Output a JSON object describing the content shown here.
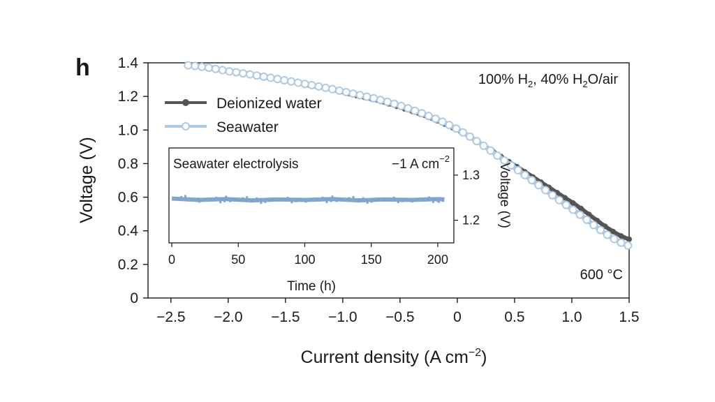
{
  "panel_label": "h",
  "chart_data": [
    {
      "type": "line",
      "xlabel": "Current density (A cm",
      "xlabel_sup": "−2",
      "xlabel_close": ")",
      "ylabel": "Voltage (V)",
      "xlim": [
        -2.7,
        1.5
      ],
      "ylim": [
        0,
        1.4
      ],
      "xticks": [
        -2.5,
        -2.0,
        -1.5,
        -1.0,
        -0.5,
        0,
        0.5,
        1.0,
        1.5
      ],
      "xtick_labels": [
        "−2.5",
        "−2.0",
        "−1.5",
        "−1.0",
        "−0.5",
        "0",
        "0.5",
        "1.0",
        "1.5"
      ],
      "yticks": [
        0,
        0.2,
        0.4,
        0.6,
        0.8,
        1.0,
        1.2,
        1.4
      ],
      "ytick_labels": [
        "0",
        "0.2",
        "0.4",
        "0.6",
        "0.8",
        "1.0",
        "1.2",
        "1.4"
      ],
      "legend_position": "upper-left",
      "annotation_conditions": {
        "parts": [
          "100% H",
          "2",
          ", 40% H",
          "2",
          "O/air"
        ]
      },
      "annotation_temperature": "600 °C",
      "series": [
        {
          "name": "Deionized water",
          "color": "#555555",
          "marker": "filled-circle",
          "x": [
            -2.35,
            -2.0,
            -1.5,
            -1.0,
            -0.5,
            0,
            0.5,
            1.0,
            1.5
          ],
          "y": [
            1.385,
            1.35,
            1.295,
            1.225,
            1.135,
            1.0,
            0.79,
            0.57,
            0.35
          ]
        },
        {
          "name": "Seawater",
          "color": "#aec9e3",
          "marker": "open-circle",
          "x": [
            -2.35,
            -2.0,
            -1.5,
            -1.0,
            -0.5,
            0,
            0.5,
            1.0,
            1.5
          ],
          "y": [
            1.385,
            1.35,
            1.295,
            1.23,
            1.145,
            1.005,
            0.775,
            0.53,
            0.31
          ]
        }
      ]
    },
    {
      "type": "line",
      "inset": true,
      "title": "Seawater electrolysis",
      "current_label": "−1 A cm",
      "current_sup": "−2",
      "xlabel": "Time (h)",
      "ylabel": "Voltage (V)",
      "xlim": [
        0,
        210
      ],
      "ylim": [
        1.15,
        1.36
      ],
      "xticks": [
        0,
        50,
        100,
        150,
        200
      ],
      "xtick_labels": [
        "0",
        "50",
        "100",
        "150",
        "200"
      ],
      "yticks": [
        1.2,
        1.3
      ],
      "ytick_labels": [
        "1.2",
        "1.3"
      ],
      "series": [
        {
          "color": "#7fa6cf",
          "x": [
            0,
            20,
            40,
            60,
            80,
            100,
            120,
            140,
            160,
            180,
            200,
            205
          ],
          "y": [
            1.248,
            1.245,
            1.247,
            1.244,
            1.246,
            1.245,
            1.247,
            1.244,
            1.246,
            1.245,
            1.247,
            1.246
          ]
        }
      ]
    }
  ]
}
